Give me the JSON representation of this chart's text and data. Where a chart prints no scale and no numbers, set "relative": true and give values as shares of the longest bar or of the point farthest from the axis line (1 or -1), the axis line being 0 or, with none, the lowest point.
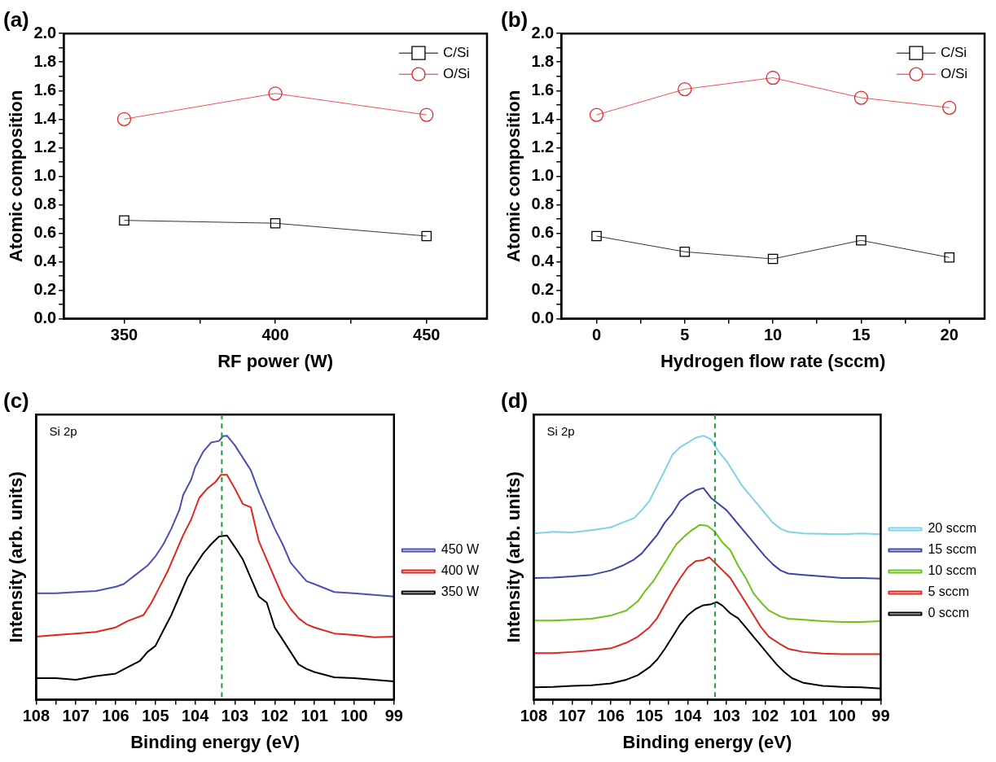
{
  "chart_data": [
    {
      "type": "line",
      "title": "(a)",
      "xlabel": "RF power (W)",
      "ylabel": "Atomic composition",
      "x": [
        350,
        400,
        450
      ],
      "xlim": [
        330,
        470
      ],
      "xticks": [
        350,
        {
          "value": 375,
          "label": null
        },
        400,
        {
          "value": 425,
          "label": null
        },
        450
      ],
      "ylim": [
        0,
        2
      ],
      "yticks": [
        {
          "value": 0,
          "label": "0.0"
        },
        {
          "value": 0.1,
          "label": null
        },
        0.2,
        {
          "value": 0.3,
          "label": null
        },
        0.4,
        {
          "value": 0.5,
          "label": null
        },
        0.6,
        {
          "value": 0.7,
          "label": null
        },
        0.8,
        {
          "value": 0.9,
          "label": null
        },
        {
          "value": 1,
          "label": "1.0"
        },
        {
          "value": 1.1,
          "label": null
        },
        1.2,
        {
          "value": 1.3,
          "label": null
        },
        1.4,
        {
          "value": 1.5,
          "label": null
        },
        1.6,
        {
          "value": 1.7,
          "label": null
        },
        1.8,
        {
          "value": 1.9,
          "label": null
        },
        {
          "value": 2,
          "label": "2.0"
        }
      ],
      "legend": "top right",
      "series": [
        {
          "name": "C/Si",
          "color": "#000000",
          "marker": "square",
          "values": [
            0.69,
            0.67,
            0.58
          ]
        },
        {
          "name": "O/Si",
          "color": "#e8262b",
          "marker": "circle",
          "values": [
            1.4,
            1.58,
            1.43
          ]
        }
      ]
    },
    {
      "type": "line",
      "title": "(b)",
      "xlabel": "Hydrogen flow rate (sccm)",
      "ylabel": "Atomic composition",
      "x": [
        0,
        5,
        10,
        15,
        20
      ],
      "xlim": [
        -2,
        22
      ],
      "xticks": [
        0,
        {
          "value": 2.5,
          "label": null
        },
        5,
        {
          "value": 7.5,
          "label": null
        },
        10,
        {
          "value": 12.5,
          "label": null
        },
        15,
        {
          "value": 17.5,
          "label": null
        },
        20
      ],
      "ylim": [
        0,
        2
      ],
      "yticks": [
        {
          "value": 0,
          "label": "0.0"
        },
        {
          "value": 0.1,
          "label": null
        },
        0.2,
        {
          "value": 0.3,
          "label": null
        },
        0.4,
        {
          "value": 0.5,
          "label": null
        },
        0.6,
        {
          "value": 0.7,
          "label": null
        },
        0.8,
        {
          "value": 0.9,
          "label": null
        },
        {
          "value": 1,
          "label": "1.0"
        },
        {
          "value": 1.1,
          "label": null
        },
        1.2,
        {
          "value": 1.3,
          "label": null
        },
        1.4,
        {
          "value": 1.5,
          "label": null
        },
        1.6,
        {
          "value": 1.7,
          "label": null
        },
        1.8,
        {
          "value": 1.9,
          "label": null
        },
        {
          "value": 2,
          "label": "2.0"
        }
      ],
      "legend": "top right",
      "series": [
        {
          "name": "C/Si",
          "color": "#000000",
          "marker": "square",
          "values": [
            0.58,
            0.47,
            0.42,
            0.55,
            0.43
          ]
        },
        {
          "name": "O/Si",
          "color": "#e8262b",
          "marker": "circle",
          "values": [
            1.43,
            1.61,
            1.69,
            1.55,
            1.48
          ]
        }
      ]
    },
    {
      "type": "line",
      "title": "(c)",
      "xlabel": "Binding energy (eV)",
      "ylabel": "Intensity (arb. units)",
      "relative": true,
      "tick_labels": "x",
      "xlim": [
        108,
        99
      ],
      "xticks": [
        108,
        {
          "value": 107.5,
          "label": null
        },
        107,
        {
          "value": 106.5,
          "label": null
        },
        106,
        {
          "value": 105.5,
          "label": null
        },
        105,
        {
          "value": 104.5,
          "label": null
        },
        104,
        {
          "value": 103.5,
          "label": null
        },
        103,
        {
          "value": 102.5,
          "label": null
        },
        102,
        {
          "value": 101.5,
          "label": null
        },
        101,
        {
          "value": 100.5,
          "label": null
        },
        100,
        {
          "value": 99.5,
          "label": null
        },
        99
      ],
      "legend": "right",
      "annotations": [
        "Si 2p"
      ],
      "ref_lines": [
        {
          "axis": "x",
          "value": 103.33,
          "color": "#1f9a3f",
          "line_style": "dashed"
        }
      ],
      "series": [
        {
          "name": "450 W",
          "color": "#4a50b4",
          "x": [
            108,
            107.5,
            107,
            106.5,
            106,
            105.8,
            105.5,
            105.2,
            105,
            104.8,
            104.6,
            104.4,
            104.3,
            104.1,
            104,
            103.8,
            103.6,
            103.4,
            103.3,
            103.2,
            103,
            102.8,
            102.6,
            102.4,
            102.2,
            102,
            101.8,
            101.6,
            101.4,
            101.2,
            101,
            100.5,
            100,
            99.5,
            99
          ],
          "values": [
            0.403,
            0.403,
            0.408,
            0.412,
            0.428,
            0.438,
            0.473,
            0.508,
            0.543,
            0.589,
            0.648,
            0.718,
            0.776,
            0.834,
            0.881,
            0.939,
            0.974,
            0.98,
            0.998,
            1,
            0.963,
            0.916,
            0.869,
            0.788,
            0.718,
            0.648,
            0.589,
            0.519,
            0.484,
            0.449,
            0.438,
            0.408,
            0.403,
            0.397,
            0.391
          ]
        },
        {
          "name": "400 W",
          "color": "#e0261f",
          "x": [
            108,
            107.5,
            107,
            106.5,
            106,
            105.7,
            105.3,
            105.1,
            104.9,
            104.7,
            104.5,
            104.3,
            104.1,
            103.9,
            103.7,
            103.5,
            103.35,
            103.2,
            103,
            102.8,
            102.6,
            102.4,
            102.2,
            102,
            101.8,
            101.6,
            101.4,
            101.2,
            101,
            100.5,
            100,
            99.5,
            99
          ],
          "values": [
            0.239,
            0.245,
            0.251,
            0.257,
            0.274,
            0.298,
            0.321,
            0.368,
            0.426,
            0.484,
            0.554,
            0.624,
            0.683,
            0.764,
            0.799,
            0.823,
            0.852,
            0.852,
            0.799,
            0.741,
            0.729,
            0.601,
            0.531,
            0.461,
            0.391,
            0.344,
            0.309,
            0.286,
            0.274,
            0.251,
            0.245,
            0.237,
            0.239
          ]
        },
        {
          "name": "350 W",
          "color": "#000000",
          "x": [
            108,
            107.5,
            107,
            106.5,
            106,
            105.7,
            105.4,
            105.2,
            105,
            104.8,
            104.6,
            104.4,
            104.2,
            104,
            103.8,
            103.6,
            103.4,
            103.2,
            103,
            102.8,
            102.6,
            102.4,
            102.2,
            102,
            101.8,
            101.6,
            101.4,
            101.2,
            101,
            100.5,
            100,
            99.5,
            99
          ],
          "values": [
            0.082,
            0.082,
            0.076,
            0.09,
            0.099,
            0.123,
            0.146,
            0.181,
            0.204,
            0.263,
            0.321,
            0.391,
            0.461,
            0.508,
            0.554,
            0.589,
            0.618,
            0.622,
            0.578,
            0.531,
            0.461,
            0.391,
            0.368,
            0.274,
            0.228,
            0.181,
            0.134,
            0.117,
            0.105,
            0.085,
            0.082,
            0.076,
            0.07
          ]
        }
      ]
    },
    {
      "type": "line",
      "title": "(d)",
      "xlabel": "Binding energy (eV)",
      "ylabel": "Intensity (arb. units)",
      "relative": true,
      "tick_labels": "x",
      "xlim": [
        108,
        99
      ],
      "xticks": [
        108,
        {
          "value": 107.5,
          "label": null
        },
        107,
        {
          "value": 106.5,
          "label": null
        },
        106,
        {
          "value": 105.5,
          "label": null
        },
        105,
        {
          "value": 104.5,
          "label": null
        },
        104,
        {
          "value": 103.5,
          "label": null
        },
        103,
        {
          "value": 102.5,
          "label": null
        },
        102,
        {
          "value": 101.5,
          "label": null
        },
        101,
        {
          "value": 100.5,
          "label": null
        },
        100,
        {
          "value": 99.5,
          "label": null
        },
        99
      ],
      "legend": "right",
      "annotations": [
        "Si 2p"
      ],
      "ref_lines": [
        {
          "axis": "x",
          "value": 103.3,
          "color": "#1f9a3f",
          "line_style": "dashed"
        }
      ],
      "series": [
        {
          "name": "20 sccm",
          "color": "#7fd3e6",
          "x": [
            108,
            107.5,
            107,
            106.5,
            106,
            105.7,
            105.4,
            105.2,
            105,
            104.8,
            104.6,
            104.4,
            104.2,
            104,
            103.8,
            103.6,
            103.4,
            103.2,
            103,
            102.8,
            102.6,
            102.4,
            102.2,
            102,
            101.8,
            101.6,
            101.4,
            101,
            100.5,
            100,
            99.5,
            99
          ],
          "values": [
            0.63,
            0.636,
            0.634,
            0.642,
            0.653,
            0.671,
            0.688,
            0.718,
            0.753,
            0.811,
            0.869,
            0.928,
            0.957,
            0.974,
            0.992,
            1,
            0.986,
            0.939,
            0.904,
            0.858,
            0.811,
            0.776,
            0.741,
            0.706,
            0.671,
            0.648,
            0.636,
            0.63,
            0.628,
            0.627,
            0.63,
            0.627
          ]
        },
        {
          "name": "15 sccm",
          "color": "#3c46a8",
          "x": [
            108,
            107.5,
            107,
            106.5,
            106,
            105.7,
            105.4,
            105.2,
            105,
            104.8,
            104.6,
            104.4,
            104.2,
            104,
            103.8,
            103.6,
            103.4,
            103.2,
            103,
            102.8,
            102.6,
            102.4,
            102.2,
            102,
            101.8,
            101.6,
            101.4,
            101,
            100.5,
            100,
            99.5,
            99
          ],
          "values": [
            0.461,
            0.463,
            0.467,
            0.473,
            0.49,
            0.508,
            0.531,
            0.554,
            0.589,
            0.624,
            0.671,
            0.706,
            0.753,
            0.776,
            0.793,
            0.802,
            0.764,
            0.741,
            0.718,
            0.683,
            0.648,
            0.613,
            0.578,
            0.543,
            0.513,
            0.49,
            0.478,
            0.473,
            0.467,
            0.461,
            0.461,
            0.459
          ]
        },
        {
          "name": "10 sccm",
          "color": "#6cc417",
          "x": [
            108,
            107.5,
            107,
            106.5,
            106,
            105.6,
            105.3,
            105.1,
            104.9,
            104.7,
            104.5,
            104.3,
            104.1,
            103.9,
            103.7,
            103.5,
            103.35,
            103.3,
            103.1,
            102.9,
            102.7,
            102.5,
            102.3,
            102.1,
            101.9,
            101.6,
            101.4,
            101,
            100.5,
            100,
            99.5,
            99
          ],
          "values": [
            0.3,
            0.3,
            0.303,
            0.307,
            0.319,
            0.338,
            0.373,
            0.414,
            0.449,
            0.496,
            0.543,
            0.589,
            0.618,
            0.642,
            0.662,
            0.659,
            0.642,
            0.636,
            0.595,
            0.566,
            0.508,
            0.461,
            0.403,
            0.368,
            0.338,
            0.315,
            0.307,
            0.303,
            0.298,
            0.295,
            0.295,
            0.298
          ]
        },
        {
          "name": "5 sccm",
          "color": "#e0261f",
          "x": [
            108,
            107.5,
            107,
            106.5,
            106,
            105.6,
            105.3,
            105,
            104.8,
            104.6,
            104.4,
            104.2,
            104,
            103.8,
            103.6,
            103.45,
            103.3,
            103.1,
            102.9,
            102.7,
            102.5,
            102.3,
            102.1,
            101.9,
            101.6,
            101.4,
            101,
            100.5,
            100,
            99.5,
            99
          ],
          "values": [
            0.177,
            0.177,
            0.181,
            0.187,
            0.195,
            0.216,
            0.239,
            0.274,
            0.309,
            0.362,
            0.414,
            0.461,
            0.502,
            0.525,
            0.529,
            0.54,
            0.519,
            0.49,
            0.461,
            0.414,
            0.368,
            0.321,
            0.274,
            0.239,
            0.21,
            0.193,
            0.181,
            0.175,
            0.173,
            0.173,
            0.173
          ]
        },
        {
          "name": "0 sccm",
          "color": "#000000",
          "x": [
            108,
            107.5,
            107,
            106.5,
            106,
            105.6,
            105.3,
            105,
            104.8,
            104.6,
            104.4,
            104.2,
            104,
            103.8,
            103.6,
            103.4,
            103.25,
            103.1,
            102.9,
            102.7,
            102.5,
            102.3,
            102.1,
            101.9,
            101.7,
            101.5,
            101.3,
            101,
            100.5,
            100,
            99.5,
            99
          ],
          "values": [
            0.047,
            0.049,
            0.053,
            0.055,
            0.062,
            0.076,
            0.093,
            0.123,
            0.152,
            0.193,
            0.239,
            0.286,
            0.321,
            0.344,
            0.358,
            0.362,
            0.37,
            0.356,
            0.327,
            0.309,
            0.274,
            0.239,
            0.204,
            0.169,
            0.134,
            0.105,
            0.082,
            0.064,
            0.053,
            0.049,
            0.047,
            0.043
          ]
        }
      ]
    }
  ]
}
